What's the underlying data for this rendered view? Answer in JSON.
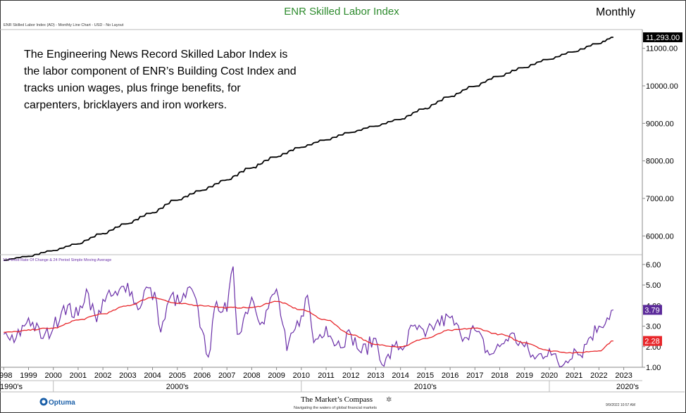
{
  "header": {
    "title": "ENR Skilled Labor Index",
    "period": "Monthly",
    "subtitle": "ENR Skilled Labor Index (AD) - Monthly Line Chart - USD - No Layout"
  },
  "annotation": {
    "lines": [
      "The Engineering News Record Skilled Labor Index is",
      "the labor component of ENR’s Building Cost Index and",
      "tracks union wages, plus fringe benefits, for",
      "carpenters, bricklayers and iron workers."
    ]
  },
  "footer": {
    "brand": "Optuma",
    "publisher": "The Market’s Compass",
    "tagline": "Navigating the waters of global financial markets",
    "timestamp": "9/9/2022 10:57 AM"
  },
  "colors": {
    "title": "#2e8b2e",
    "price_line": "#000000",
    "roc_line": "#6a2fa8",
    "sma_line": "#e8262a"
  },
  "chart_data": [
    {
      "type": "line",
      "title": "ENR Skilled Labor Index",
      "x_start": "1998-01",
      "x_end": "2022-08",
      "ylim": [
        5500,
        11500
      ],
      "yticks": [
        "6000.00",
        "7000.00",
        "8000.00",
        "9000.00",
        "10000.00",
        "11000.00"
      ],
      "grid": false,
      "last_value_label": "11,293.00",
      "series": [
        {
          "anchors": [
            [
              "1998-01",
              5350
            ],
            [
              "1999-01",
              5450
            ],
            [
              "2000-01",
              5600
            ],
            [
              "2001-01",
              5780
            ],
            [
              "2002-01",
              6050
            ],
            [
              "2003-01",
              6320
            ],
            [
              "2004-01",
              6600
            ],
            [
              "2005-01",
              6950
            ],
            [
              "2006-01",
              7200
            ],
            [
              "2007-01",
              7480
            ],
            [
              "2008-01",
              7800
            ],
            [
              "2009-01",
              8100
            ],
            [
              "2010-01",
              8350
            ],
            [
              "2011-01",
              8550
            ],
            [
              "2012-01",
              8750
            ],
            [
              "2013-01",
              8920
            ],
            [
              "2014-01",
              9100
            ],
            [
              "2015-01",
              9380
            ],
            [
              "2016-01",
              9700
            ],
            [
              "2017-01",
              9980
            ],
            [
              "2018-01",
              10250
            ],
            [
              "2019-01",
              10480
            ],
            [
              "2020-01",
              10700
            ],
            [
              "2021-01",
              10900
            ],
            [
              "2022-01",
              11120
            ],
            [
              "2022-08",
              11293
            ]
          ]
        }
      ]
    },
    {
      "type": "line",
      "title": "12 Period Rate Of Change & 24 Period Simple Moving Average",
      "ylim": [
        1,
        6.2
      ],
      "yticks": [
        "1.00",
        "2.00",
        "3.00",
        "4.00",
        "5.00",
        "6.00"
      ],
      "grid": false,
      "last_value_labels": {
        "roc": "3.79",
        "sma": "2.28"
      },
      "series": [
        {
          "name": "12 Period Rate Of Change",
          "points": [
            [
              "1998-01",
              2.6
            ],
            [
              "1998-06",
              2.2
            ],
            [
              "1999-01",
              3.4
            ],
            [
              "1999-08",
              2.4
            ],
            [
              "2000-01",
              2.9
            ],
            [
              "2000-06",
              4.0
            ],
            [
              "2001-01",
              3.5
            ],
            [
              "2001-05",
              4.8
            ],
            [
              "2001-10",
              3.2
            ],
            [
              "2002-01",
              4.3
            ],
            [
              "2002-08",
              4.5
            ],
            [
              "2003-01",
              5.1
            ],
            [
              "2003-06",
              3.8
            ],
            [
              "2003-10",
              4.9
            ],
            [
              "2004-03",
              4.2
            ],
            [
              "2004-05",
              2.7
            ],
            [
              "2004-10",
              4.5
            ],
            [
              "2005-02",
              4.1
            ],
            [
              "2005-08",
              4.8
            ],
            [
              "2006-01",
              2.8
            ],
            [
              "2006-04",
              1.5
            ],
            [
              "2006-08",
              4.2
            ],
            [
              "2007-01",
              3.7
            ],
            [
              "2007-04",
              5.9
            ],
            [
              "2007-06",
              2.6
            ],
            [
              "2008-01",
              4.4
            ],
            [
              "2008-06",
              3.2
            ],
            [
              "2009-01",
              4.8
            ],
            [
              "2009-06",
              1.8
            ],
            [
              "2010-01",
              3.5
            ],
            [
              "2010-04",
              4.5
            ],
            [
              "2010-07",
              2.2
            ],
            [
              "2011-01",
              3.0
            ],
            [
              "2011-06",
              2.1
            ],
            [
              "2012-01",
              2.6
            ],
            [
              "2012-06",
              1.7
            ],
            [
              "2013-01",
              2.4
            ],
            [
              "2013-05",
              1.05
            ],
            [
              "2013-10",
              2.0
            ],
            [
              "2014-03",
              2.0
            ],
            [
              "2014-07",
              3.0
            ],
            [
              "2015-01",
              2.5
            ],
            [
              "2015-06",
              3.1
            ],
            [
              "2016-01",
              3.4
            ],
            [
              "2016-06",
              2.6
            ],
            [
              "2017-01",
              2.8
            ],
            [
              "2017-08",
              1.6
            ],
            [
              "2018-01",
              2.0
            ],
            [
              "2018-06",
              2.6
            ],
            [
              "2019-01",
              2.0
            ],
            [
              "2019-06",
              1.4
            ],
            [
              "2020-01",
              1.9
            ],
            [
              "2020-06",
              1.0
            ],
            [
              "2021-01",
              1.9
            ],
            [
              "2021-04",
              1.6
            ],
            [
              "2021-08",
              2.4
            ],
            [
              "2022-01",
              3.0
            ],
            [
              "2022-08",
              3.79
            ]
          ]
        },
        {
          "name": "24 Period Simple Moving Average",
          "points": [
            [
              "1998-01",
              2.7
            ],
            [
              "2000-01",
              2.9
            ],
            [
              "2001-01",
              3.3
            ],
            [
              "2002-01",
              3.6
            ],
            [
              "2003-01",
              4.0
            ],
            [
              "2004-01",
              4.4
            ],
            [
              "2005-01",
              4.1
            ],
            [
              "2006-01",
              4.0
            ],
            [
              "2007-01",
              3.9
            ],
            [
              "2008-01",
              3.9
            ],
            [
              "2009-01",
              4.2
            ],
            [
              "2010-01",
              3.8
            ],
            [
              "2011-01",
              3.3
            ],
            [
              "2012-01",
              2.6
            ],
            [
              "2013-01",
              2.1
            ],
            [
              "2014-01",
              2.0
            ],
            [
              "2015-01",
              2.4
            ],
            [
              "2016-01",
              2.8
            ],
            [
              "2017-01",
              2.9
            ],
            [
              "2018-01",
              2.6
            ],
            [
              "2019-01",
              2.2
            ],
            [
              "2020-01",
              1.8
            ],
            [
              "2021-01",
              1.7
            ],
            [
              "2022-01",
              1.8
            ],
            [
              "2022-08",
              2.28
            ]
          ]
        }
      ]
    },
    {
      "type": "axis",
      "x_ticks": [
        "1998",
        "1999",
        "2000",
        "2001",
        "2002",
        "2003",
        "2004",
        "2005",
        "2006",
        "2007",
        "2008",
        "2009",
        "2010",
        "2011",
        "2012",
        "2013",
        "2014",
        "2015",
        "2016",
        "2017",
        "2018",
        "2019",
        "2020",
        "2021",
        "2022",
        "2023"
      ],
      "decades": [
        "1990's",
        "2000's",
        "2010's",
        "2020's"
      ]
    }
  ]
}
